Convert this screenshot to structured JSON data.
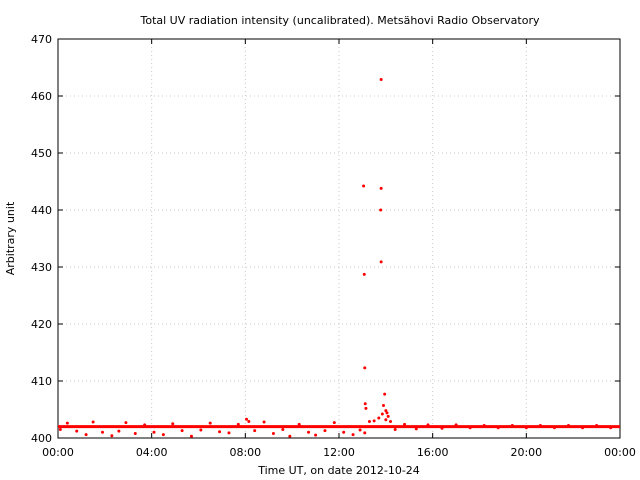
{
  "chart_data": {
    "type": "scatter",
    "title": "Total UV radiation intensity (uncalibrated). Metsähovi Radio Observatory",
    "xlabel": "Time UT, on date 2012-10-24",
    "ylabel": "Arbitrary unit",
    "xlim": [
      0,
      24
    ],
    "ylim": [
      400,
      470
    ],
    "x_ticks": [
      0,
      4,
      8,
      12,
      16,
      20,
      24
    ],
    "x_tick_labels": [
      "00:00",
      "04:00",
      "08:00",
      "12:00",
      "16:00",
      "20:00",
      "00:00"
    ],
    "y_ticks": [
      400,
      410,
      420,
      430,
      440,
      450,
      460,
      470
    ],
    "y_tick_labels": [
      "400",
      "410",
      "420",
      "430",
      "440",
      "450",
      "460",
      "470"
    ],
    "grid": true,
    "marker_color": "#ff0000",
    "baseline": {
      "value": 402,
      "x_from": 0,
      "x_to": 24
    },
    "series": [
      {
        "name": "",
        "points": [
          {
            "x": 0.1,
            "y": 401.5
          },
          {
            "x": 0.4,
            "y": 402.6
          },
          {
            "x": 0.8,
            "y": 401.2
          },
          {
            "x": 1.2,
            "y": 400.6
          },
          {
            "x": 1.5,
            "y": 402.8
          },
          {
            "x": 1.9,
            "y": 401.0
          },
          {
            "x": 2.3,
            "y": 400.4
          },
          {
            "x": 2.6,
            "y": 401.2
          },
          {
            "x": 2.9,
            "y": 402.7
          },
          {
            "x": 3.3,
            "y": 400.8
          },
          {
            "x": 3.7,
            "y": 402.3
          },
          {
            "x": 4.1,
            "y": 401.0
          },
          {
            "x": 4.5,
            "y": 400.6
          },
          {
            "x": 4.9,
            "y": 402.5
          },
          {
            "x": 5.3,
            "y": 401.3
          },
          {
            "x": 5.7,
            "y": 400.3
          },
          {
            "x": 6.1,
            "y": 401.4
          },
          {
            "x": 6.5,
            "y": 402.6
          },
          {
            "x": 6.9,
            "y": 401.1
          },
          {
            "x": 7.3,
            "y": 400.9
          },
          {
            "x": 7.7,
            "y": 402.4
          },
          {
            "x": 8.05,
            "y": 403.3
          },
          {
            "x": 8.15,
            "y": 402.9
          },
          {
            "x": 8.4,
            "y": 401.3
          },
          {
            "x": 8.8,
            "y": 402.8
          },
          {
            "x": 9.2,
            "y": 400.8
          },
          {
            "x": 9.6,
            "y": 401.5
          },
          {
            "x": 9.9,
            "y": 400.3
          },
          {
            "x": 10.3,
            "y": 402.4
          },
          {
            "x": 10.7,
            "y": 401.0
          },
          {
            "x": 11.0,
            "y": 400.5
          },
          {
            "x": 11.4,
            "y": 401.3
          },
          {
            "x": 11.8,
            "y": 402.7
          },
          {
            "x": 12.2,
            "y": 401.0
          },
          {
            "x": 12.6,
            "y": 400.6
          },
          {
            "x": 12.9,
            "y": 401.4
          },
          {
            "x": 13.1,
            "y": 400.9
          },
          {
            "x": 13.05,
            "y": 444.2
          },
          {
            "x": 13.08,
            "y": 428.7
          },
          {
            "x": 13.1,
            "y": 412.3
          },
          {
            "x": 13.12,
            "y": 406.0
          },
          {
            "x": 13.15,
            "y": 405.2
          },
          {
            "x": 13.3,
            "y": 402.9
          },
          {
            "x": 13.5,
            "y": 403.0
          },
          {
            "x": 13.7,
            "y": 403.5
          },
          {
            "x": 13.8,
            "y": 462.9
          },
          {
            "x": 13.8,
            "y": 443.8
          },
          {
            "x": 13.78,
            "y": 440.0
          },
          {
            "x": 13.8,
            "y": 430.9
          },
          {
            "x": 13.95,
            "y": 407.7
          },
          {
            "x": 13.9,
            "y": 405.7
          },
          {
            "x": 14.0,
            "y": 404.8
          },
          {
            "x": 14.05,
            "y": 404.4
          },
          {
            "x": 13.85,
            "y": 404.2
          },
          {
            "x": 14.1,
            "y": 403.8
          },
          {
            "x": 14.0,
            "y": 403.2
          },
          {
            "x": 14.2,
            "y": 402.9
          },
          {
            "x": 14.4,
            "y": 401.5
          },
          {
            "x": 14.8,
            "y": 402.4
          },
          {
            "x": 15.3,
            "y": 401.6
          },
          {
            "x": 15.8,
            "y": 402.3
          },
          {
            "x": 16.4,
            "y": 401.7
          },
          {
            "x": 17.0,
            "y": 402.3
          },
          {
            "x": 17.6,
            "y": 401.8
          },
          {
            "x": 18.2,
            "y": 402.2
          },
          {
            "x": 18.8,
            "y": 401.8
          },
          {
            "x": 19.4,
            "y": 402.2
          },
          {
            "x": 20.0,
            "y": 401.8
          },
          {
            "x": 20.6,
            "y": 402.2
          },
          {
            "x": 21.2,
            "y": 401.8
          },
          {
            "x": 21.8,
            "y": 402.2
          },
          {
            "x": 22.4,
            "y": 401.8
          },
          {
            "x": 23.0,
            "y": 402.2
          },
          {
            "x": 23.6,
            "y": 401.8
          }
        ]
      }
    ]
  }
}
